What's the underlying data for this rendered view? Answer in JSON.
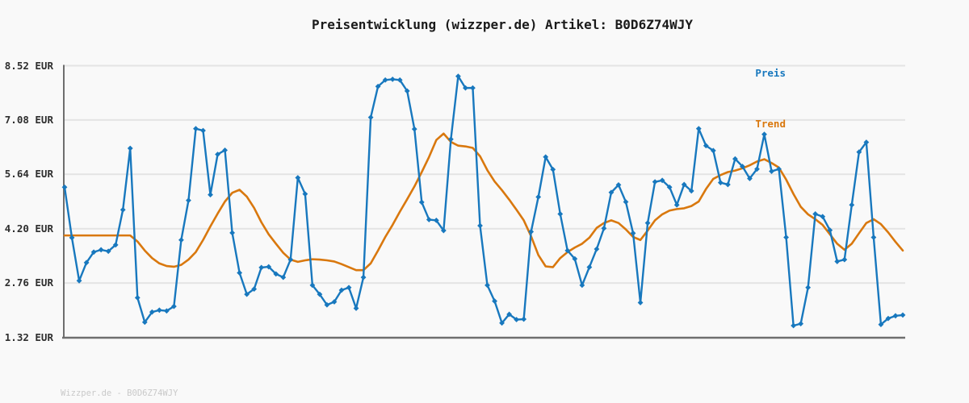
{
  "title": "Preisentwicklung (wizzper.de) Artikel: B0D6Z74WJY",
  "legend": {
    "preis_label": "Preis",
    "trend_label": "Trend"
  },
  "footer_text": "Wizzper.de - B0D6Z74WJY",
  "colors": {
    "preis": "#1878be",
    "trend": "#d9780e",
    "grid": "#e4e4e4",
    "spine": "#6e6e6e",
    "background": "#f9f9f9",
    "title_text": "#1a1a1a",
    "axis_text": "#2e2e2e",
    "footer_text": "#c9c9c9"
  },
  "y_axis": {
    "unit": "EUR",
    "ticks": [
      {
        "label": "8.52 EUR",
        "value": 8.52
      },
      {
        "label": "7.08 EUR",
        "value": 7.08
      },
      {
        "label": "5.64 EUR",
        "value": 5.64
      },
      {
        "label": "4.20 EUR",
        "value": 4.2
      },
      {
        "label": "2.76 EUR",
        "value": 2.76
      },
      {
        "label": "1.32 EUR",
        "value": 1.32
      }
    ]
  },
  "chart_data": {
    "type": "line",
    "title": "Preisentwicklung (wizzper.de) Artikel: B0D6Z74WJY",
    "xlabel": "",
    "ylabel": "EUR",
    "ylim": [
      1.32,
      8.52
    ],
    "x_tick_labels_visible": false,
    "grid": "horizontal",
    "legend_position": "top-right",
    "num_points": 116,
    "series": [
      {
        "name": "Preis",
        "color": "#1878be",
        "marker": "diamond",
        "values": [
          5.3,
          3.96,
          2.82,
          3.3,
          3.58,
          3.64,
          3.6,
          3.77,
          4.7,
          6.33,
          2.37,
          1.72,
          1.99,
          2.04,
          2.02,
          2.14,
          3.9,
          4.95,
          6.85,
          6.8,
          5.1,
          6.17,
          6.28,
          4.09,
          3.03,
          2.46,
          2.6,
          3.17,
          3.19,
          3.0,
          2.91,
          3.38,
          5.55,
          5.12,
          2.7,
          2.46,
          2.18,
          2.26,
          2.57,
          2.64,
          2.09,
          2.91,
          7.15,
          7.97,
          8.14,
          8.16,
          8.14,
          7.85,
          6.84,
          4.9,
          4.44,
          4.42,
          4.15,
          6.57,
          8.24,
          7.93,
          7.93,
          4.28,
          2.7,
          2.28,
          1.7,
          1.93,
          1.79,
          1.8,
          4.12,
          5.04,
          6.1,
          5.77,
          4.59,
          3.62,
          3.4,
          2.7,
          3.18,
          3.66,
          4.21,
          5.16,
          5.36,
          4.91,
          4.08,
          2.24,
          4.35,
          5.44,
          5.48,
          5.3,
          4.83,
          5.37,
          5.2,
          6.85,
          6.4,
          6.27,
          5.42,
          5.37,
          6.05,
          5.85,
          5.53,
          5.78,
          6.7,
          5.72,
          5.78,
          3.97,
          1.63,
          1.68,
          2.64,
          4.59,
          4.52,
          4.16,
          3.33,
          3.38,
          4.83,
          6.23,
          6.49,
          3.97,
          1.66,
          1.82,
          1.89,
          1.91
        ]
      },
      {
        "name": "Trend",
        "color": "#d9780e",
        "marker": "none",
        "values": [
          4.02,
          4.02,
          4.02,
          4.02,
          4.02,
          4.02,
          4.02,
          4.02,
          4.02,
          4.02,
          3.86,
          3.62,
          3.42,
          3.28,
          3.21,
          3.19,
          3.24,
          3.38,
          3.58,
          3.9,
          4.26,
          4.6,
          4.92,
          5.15,
          5.23,
          5.05,
          4.75,
          4.37,
          4.05,
          3.8,
          3.56,
          3.38,
          3.32,
          3.36,
          3.39,
          3.38,
          3.36,
          3.33,
          3.26,
          3.18,
          3.1,
          3.1,
          3.28,
          3.62,
          3.98,
          4.3,
          4.65,
          4.98,
          5.32,
          5.7,
          6.1,
          6.55,
          6.72,
          6.5,
          6.4,
          6.38,
          6.34,
          6.12,
          5.75,
          5.45,
          5.22,
          4.97,
          4.7,
          4.42,
          4.0,
          3.5,
          3.2,
          3.18,
          3.42,
          3.58,
          3.7,
          3.8,
          3.96,
          4.22,
          4.35,
          4.42,
          4.35,
          4.18,
          3.98,
          3.9,
          4.15,
          4.42,
          4.58,
          4.68,
          4.72,
          4.74,
          4.8,
          4.92,
          5.25,
          5.52,
          5.62,
          5.7,
          5.74,
          5.8,
          5.88,
          5.98,
          6.04,
          5.94,
          5.82,
          5.5,
          5.12,
          4.78,
          4.58,
          4.45,
          4.3,
          4.05,
          3.8,
          3.64,
          3.8,
          4.08,
          4.35,
          4.45,
          4.32,
          4.1,
          3.85,
          3.62
        ]
      }
    ]
  }
}
